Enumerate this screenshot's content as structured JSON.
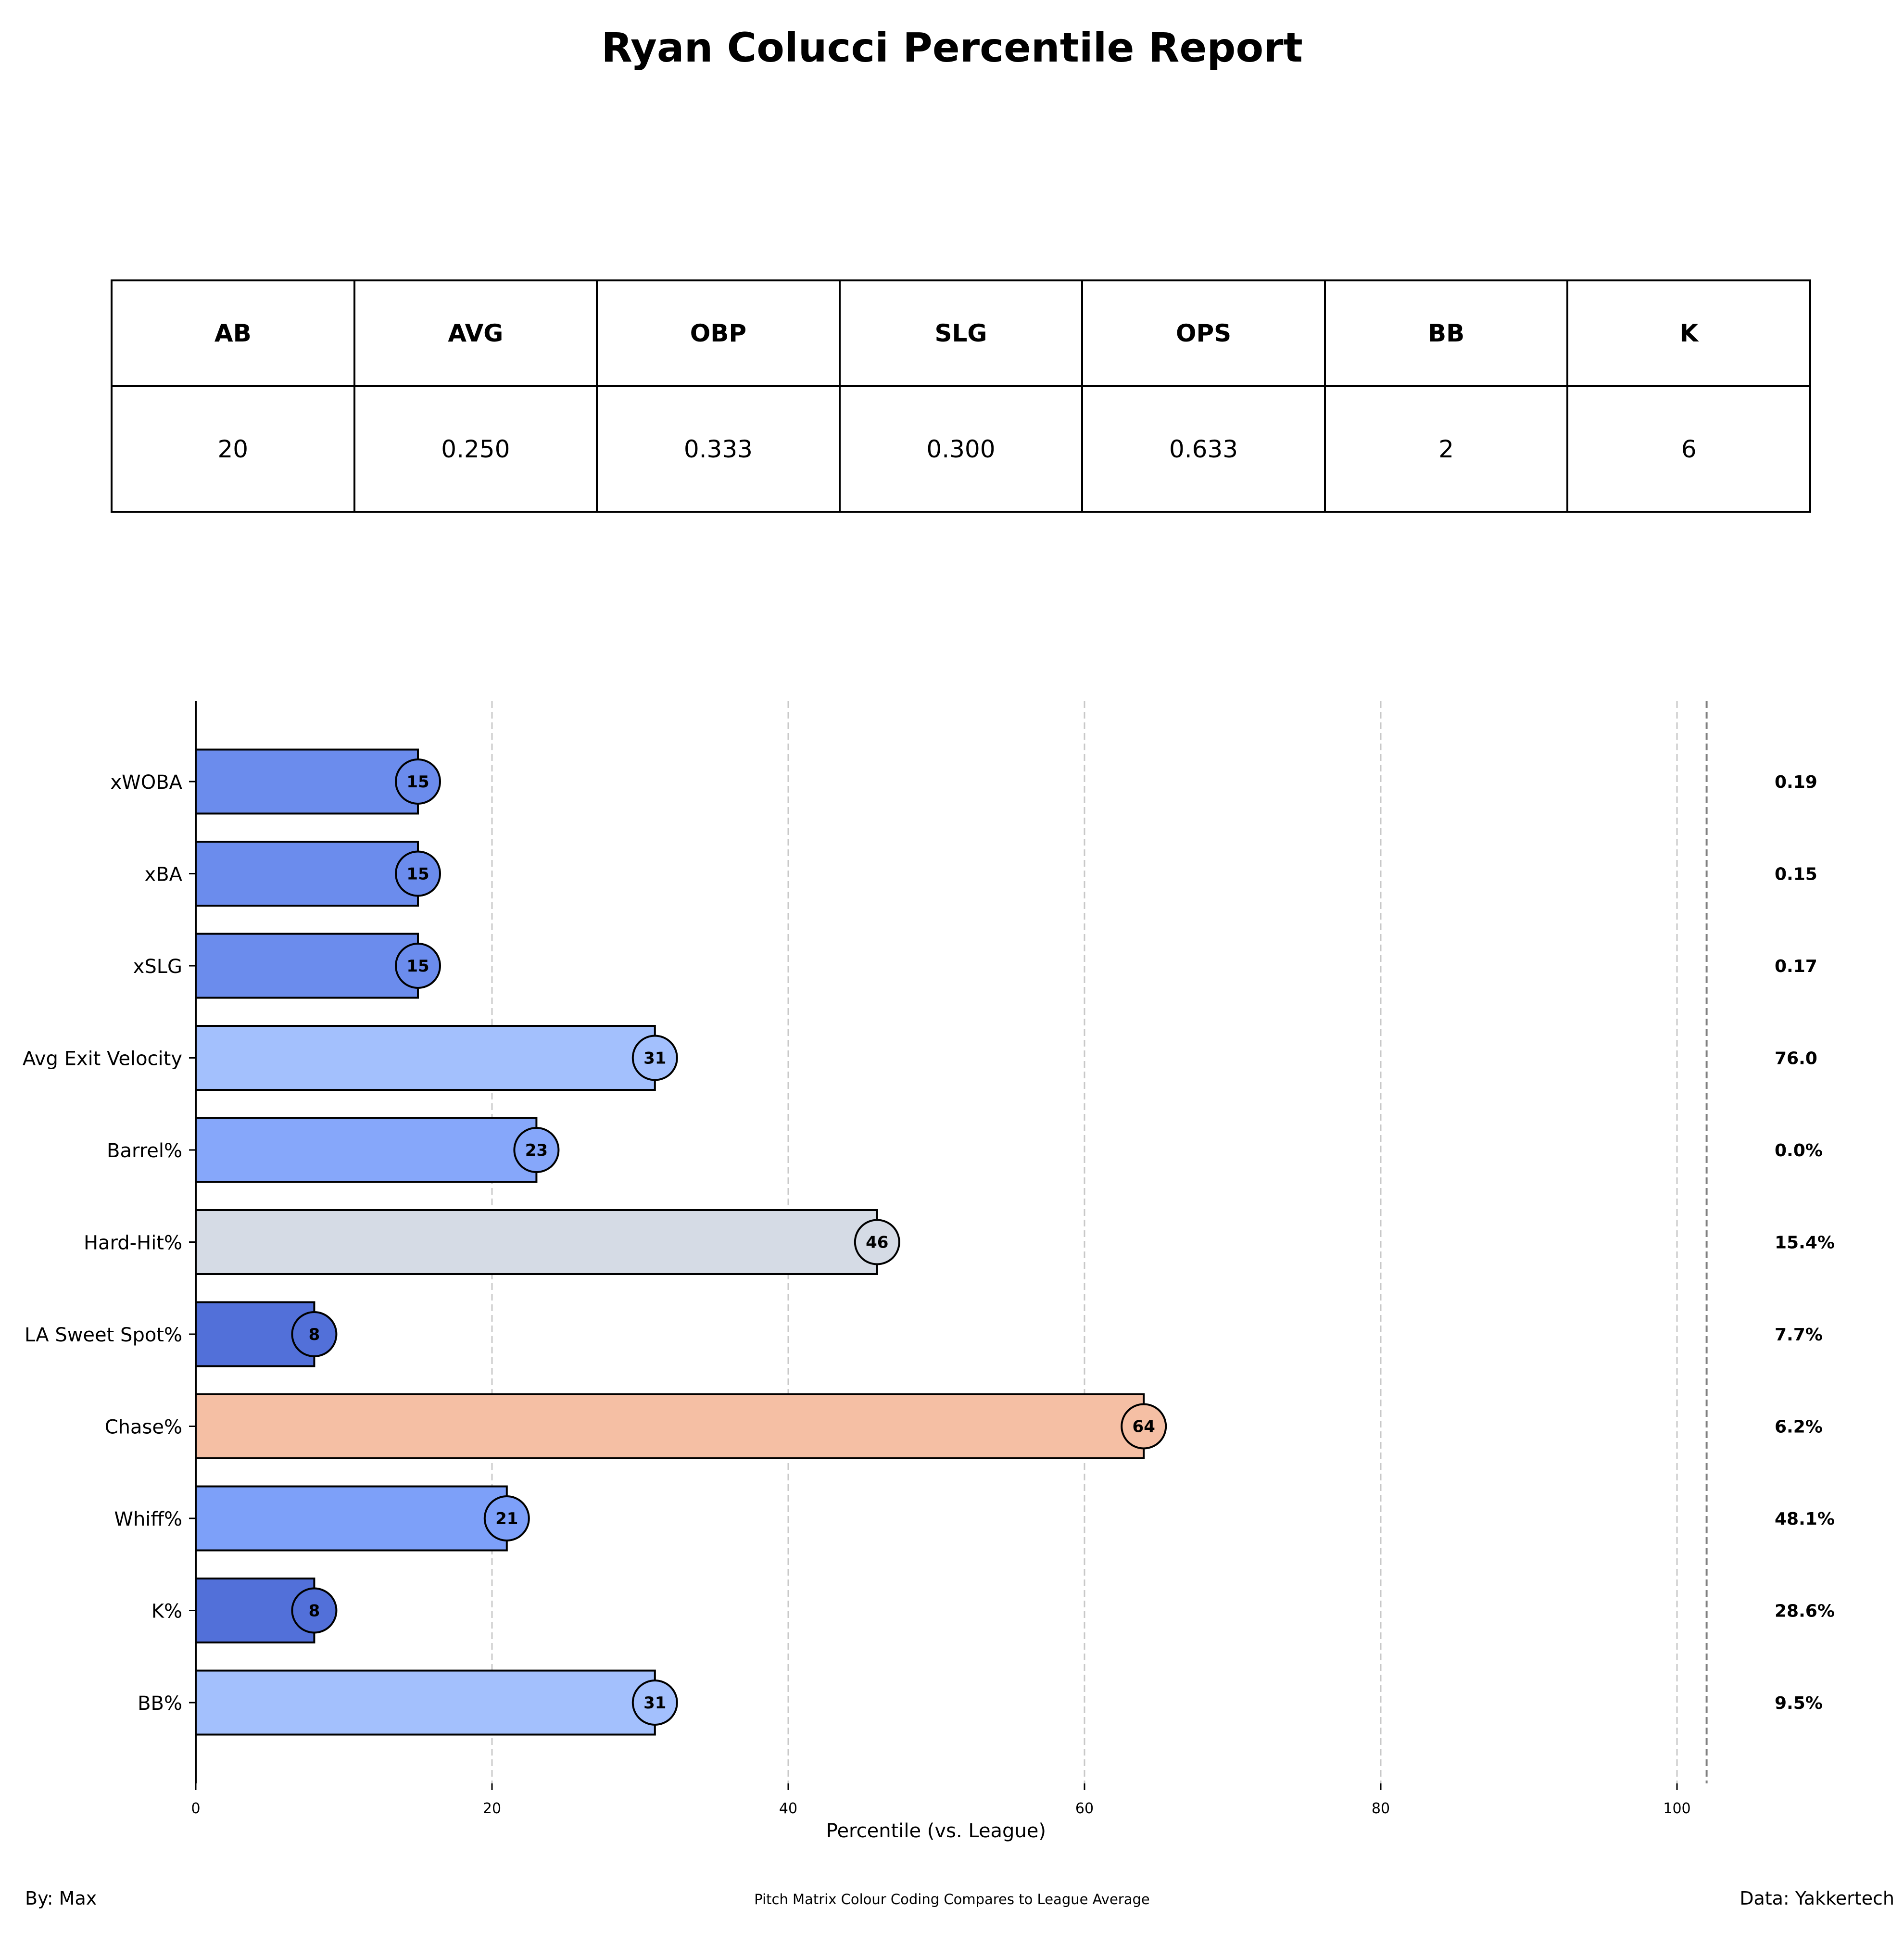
{
  "title": "Ryan Colucci Percentile Report",
  "stats_table": {
    "headers": [
      "AB",
      "AVG",
      "OBP",
      "SLG",
      "OPS",
      "BB",
      "K"
    ],
    "values": [
      "20",
      "0.250",
      "0.333",
      "0.300",
      "0.633",
      "2",
      "6"
    ]
  },
  "chart_data": {
    "type": "bar",
    "orientation": "horizontal",
    "xlabel": "Percentile (vs. League)",
    "xlim": [
      0,
      102
    ],
    "xticks": [
      0,
      20,
      40,
      60,
      80,
      100
    ],
    "grid": "vertical dashed",
    "categories": [
      "xWOBA",
      "xBA",
      "xSLG",
      "Avg Exit Velocity",
      "Barrel%",
      "Hard-Hit%",
      "LA Sweet Spot%",
      "Chase%",
      "Whiff%",
      "K%",
      "BB%"
    ],
    "values": [
      15,
      15,
      15,
      31,
      23,
      46,
      8,
      64,
      21,
      8,
      31
    ],
    "stat_values": [
      "0.19",
      "0.15",
      "0.17",
      "76.0",
      "0.0%",
      "15.4%",
      "7.7%",
      "6.2%",
      "48.1%",
      "28.6%",
      "9.5%"
    ],
    "colors": [
      "#6b8ced",
      "#6b8ced",
      "#6b8ced",
      "#a3c0fd",
      "#86a7fa",
      "#d5dbe5",
      "#5270d9",
      "#f5bfa4",
      "#7da0f9",
      "#5270d9",
      "#a3c0fd"
    ]
  },
  "footer": {
    "left": "By: Max",
    "center": "Pitch Matrix Colour Coding Compares to League Average",
    "right": "Data: Yakkertech"
  }
}
